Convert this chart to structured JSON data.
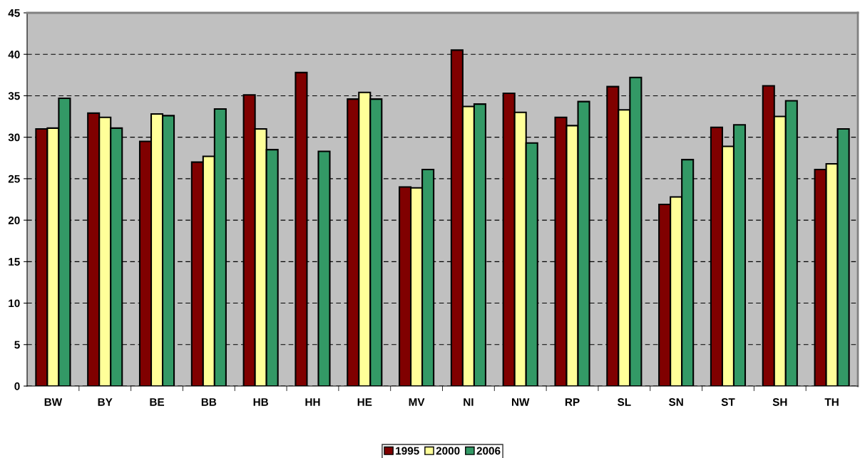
{
  "chart_data": {
    "type": "bar",
    "categories": [
      "BW",
      "BY",
      "BE",
      "BB",
      "HB",
      "HH",
      "HE",
      "MV",
      "NI",
      "NW",
      "RP",
      "SL",
      "SN",
      "ST",
      "SH",
      "TH"
    ],
    "series": [
      {
        "name": "1995",
        "color": "#800000",
        "values": [
          31.0,
          32.9,
          29.5,
          27.0,
          35.1,
          37.8,
          34.6,
          24.0,
          40.5,
          35.3,
          32.4,
          36.1,
          21.9,
          31.2,
          36.2,
          26.1
        ]
      },
      {
        "name": "2000",
        "color": "#ffff99",
        "values": [
          31.1,
          32.4,
          32.8,
          27.7,
          31.0,
          null,
          35.4,
          23.9,
          33.7,
          33.0,
          31.4,
          33.3,
          22.8,
          28.9,
          32.5,
          26.8
        ]
      },
      {
        "name": "2006",
        "color": "#339966",
        "values": [
          34.7,
          31.1,
          32.6,
          33.4,
          28.5,
          28.3,
          34.6,
          26.1,
          34.0,
          29.3,
          34.3,
          37.2,
          27.3,
          31.5,
          34.4,
          31.0
        ]
      }
    ],
    "ylim": [
      0,
      45
    ],
    "yticks": [
      0,
      5,
      10,
      15,
      20,
      25,
      30,
      35,
      40,
      45
    ],
    "grid": "y",
    "legend": "bottom"
  }
}
